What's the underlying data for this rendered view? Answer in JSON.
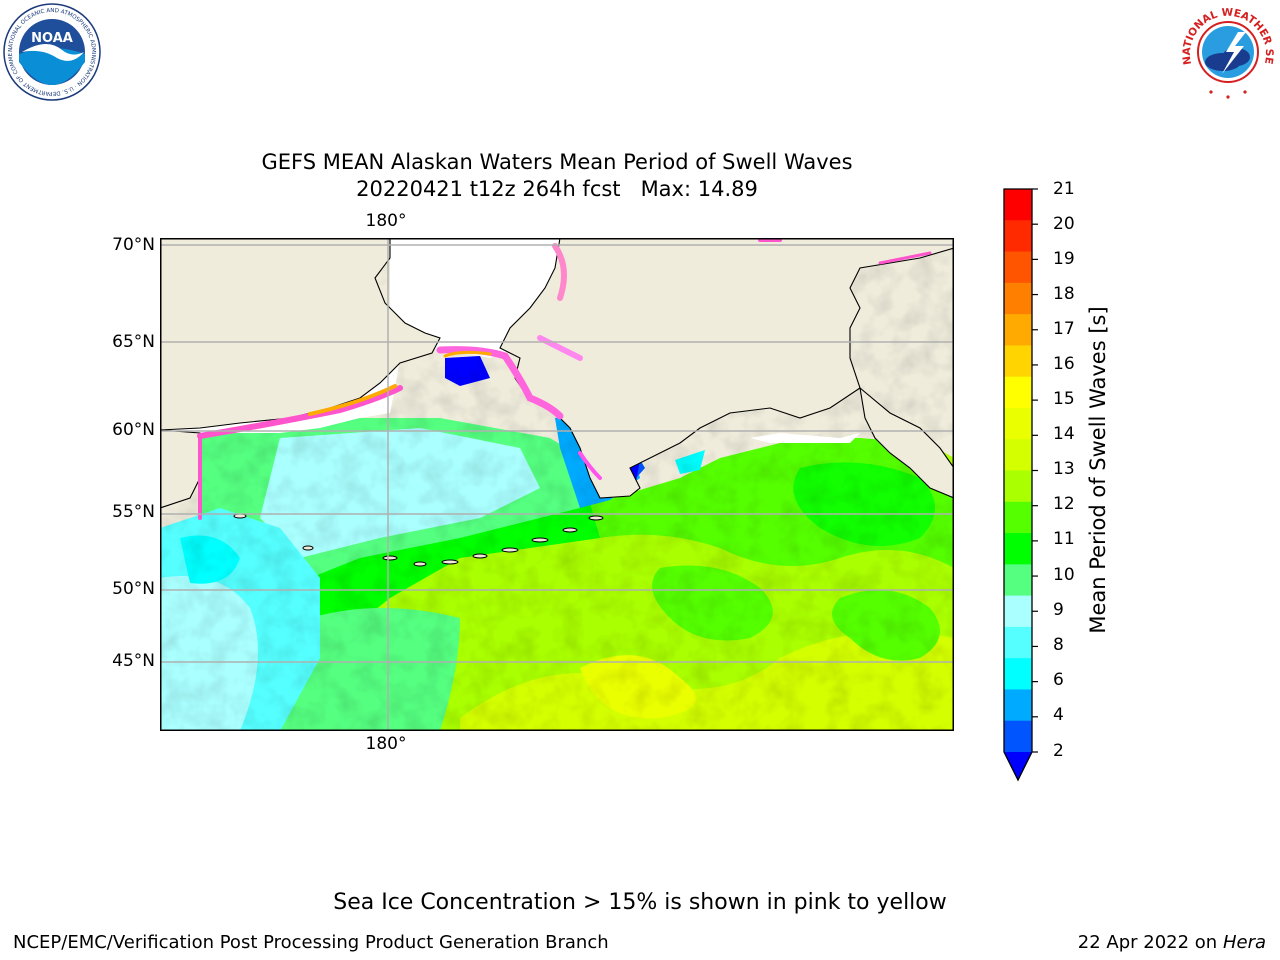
{
  "header": {
    "title_line1": "GEFS MEAN Alaskan Waters Mean Period of Swell Waves",
    "title_line2": "20220421 t12z 264h fcst   Max: 14.89"
  },
  "logos": {
    "noaa": "NOAA",
    "noaa_ring": "NATIONAL OCEANIC AND ATMOSPHERIC ADMINISTRATION · U.S. DEPARTMENT OF COMMERCE",
    "nws_ring": "NATIONAL WEATHER SERVICE"
  },
  "map": {
    "lat_labels": [
      "70°N",
      "65°N",
      "60°N",
      "55°N",
      "50°N",
      "45°N"
    ],
    "lon_label_top": "180°",
    "lon_label_bottom": "180°",
    "land_color": "#efecdc",
    "ice_free_color": "#ffffff"
  },
  "colorbar": {
    "label": "Mean Period of Swell Waves [s]",
    "ticks": [
      "21",
      "20",
      "19",
      "18",
      "17",
      "16",
      "15",
      "14",
      "13",
      "12",
      "11",
      "10",
      "9",
      "8",
      "6",
      "4",
      "2"
    ],
    "colors_top_to_bottom": [
      "#ff0000",
      "#ff2a00",
      "#ff5500",
      "#ff7f00",
      "#ffaa00",
      "#ffd400",
      "#ffff00",
      "#eaff00",
      "#d4ff00",
      "#aaff00",
      "#55ff00",
      "#00ff00",
      "#55ff80",
      "#aaffff",
      "#55ffff",
      "#00ffff",
      "#00aaff",
      "#0055ff"
    ],
    "under_color": "#0000ff"
  },
  "notes": {
    "ice_note": "Sea Ice Concentration > 15% is shown in pink to yellow"
  },
  "footer": {
    "left": "NCEP/EMC/Verification Post Processing Product Generation Branch",
    "right_date": "22 Apr 2022 on ",
    "right_host": "Hera"
  }
}
